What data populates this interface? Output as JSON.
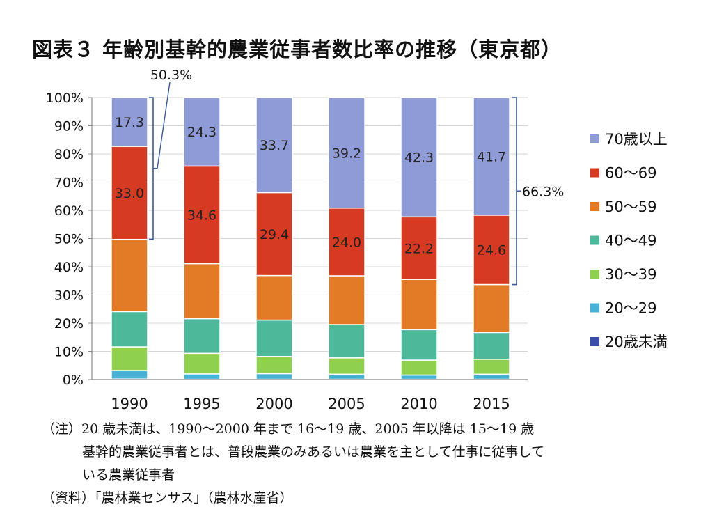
{
  "title": "図表３ 年齢別基幹的農業従事者数比率の推移（東京都）",
  "chart_data": {
    "type": "bar",
    "stacked": true,
    "percent": true,
    "categories": [
      "1990",
      "1995",
      "2000",
      "2005",
      "2010",
      "2015"
    ],
    "ylim": [
      0,
      100
    ],
    "yticks": [
      "0%",
      "10%",
      "20%",
      "30%",
      "40%",
      "50%",
      "60%",
      "70%",
      "80%",
      "90%",
      "100%"
    ],
    "grid": true,
    "legend_position": "right",
    "series": [
      {
        "name": "20歳未満",
        "color": "#3b4fa8",
        "values": [
          0.2,
          0.1,
          0.1,
          0.1,
          0.1,
          0.1
        ]
      },
      {
        "name": "20〜29",
        "color": "#46b3d6",
        "values": [
          3.0,
          1.9,
          2.0,
          1.8,
          1.5,
          1.8
        ]
      },
      {
        "name": "30〜39",
        "color": "#8fd14f",
        "values": [
          8.4,
          7.3,
          6.1,
          5.8,
          5.3,
          5.3
        ]
      },
      {
        "name": "40〜49",
        "color": "#4db89a",
        "values": [
          12.5,
          12.3,
          12.9,
          11.8,
          10.8,
          9.5
        ]
      },
      {
        "name": "50〜59",
        "color": "#e27a26",
        "values": [
          25.6,
          19.5,
          15.8,
          17.3,
          17.8,
          17.0
        ]
      },
      {
        "name": "60〜69",
        "color": "#d63a22",
        "values": [
          33.0,
          34.6,
          29.4,
          24.0,
          22.2,
          24.6
        ]
      },
      {
        "name": "70歳以上",
        "color": "#8f9bd6",
        "values": [
          17.3,
          24.3,
          33.7,
          39.2,
          42.3,
          41.7
        ]
      }
    ],
    "data_labels": {
      "60〜69": [
        "33.0",
        "34.6",
        "29.4",
        "24.0",
        "22.2",
        "24.6"
      ],
      "70歳以上": [
        "17.3",
        "24.3",
        "33.7",
        "39.2",
        "42.3",
        "41.7"
      ]
    },
    "legend_order": [
      "70歳以上",
      "60〜69",
      "50〜59",
      "40〜49",
      "30〜39",
      "20〜29",
      "20歳未満"
    ],
    "annotations": [
      {
        "text": "50.3%",
        "category": "1990",
        "from": 49.7,
        "to": 100
      },
      {
        "text": "66.3%",
        "category": "2015",
        "from": 33.7,
        "to": 100
      }
    ]
  },
  "notes": {
    "line1": "（注）20 歳未満は、1990〜2000 年まで 16〜19 歳、2005 年以降は 15〜19 歳",
    "line2": "基幹的農業従事者とは、普段農業のみあるいは農業を主として仕事に従事して",
    "line3": "いる農業従事者",
    "line4": "（資料）「農林業センサス」（農林水産省）"
  }
}
